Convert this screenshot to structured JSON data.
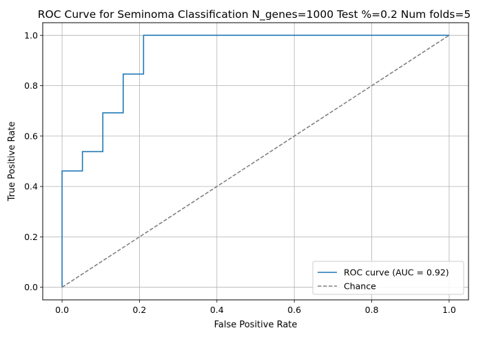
{
  "chart_data": {
    "type": "line",
    "title": "ROC Curve for Seminoma Classification N_genes=1000 Test %=0.2 Num folds=5",
    "xlabel": "False Positive Rate",
    "ylabel": "True Positive Rate",
    "xlim": [
      -0.05,
      1.05
    ],
    "ylim": [
      -0.05,
      1.05
    ],
    "xticks": [
      0.0,
      0.2,
      0.4,
      0.6,
      0.8,
      1.0
    ],
    "xtick_labels": [
      "0.0",
      "0.2",
      "0.4",
      "0.6",
      "0.8",
      "1.0"
    ],
    "yticks": [
      0.0,
      0.2,
      0.4,
      0.6,
      0.8,
      1.0
    ],
    "ytick_labels": [
      "0.0",
      "0.2",
      "0.4",
      "0.6",
      "0.8",
      "1.0"
    ],
    "grid": true,
    "legend_position": "lower-right",
    "series": [
      {
        "name": "ROC curve (AUC = 0.92)",
        "color": "#1f77b4",
        "style": "solid",
        "x": [
          0.0,
          0.0,
          0.0526,
          0.0526,
          0.1053,
          0.1053,
          0.1579,
          0.1579,
          0.2105,
          0.2105,
          1.0
        ],
        "y": [
          0.0,
          0.4615,
          0.4615,
          0.5385,
          0.5385,
          0.6923,
          0.6923,
          0.8462,
          0.8462,
          1.0,
          1.0
        ]
      },
      {
        "name": "Chance",
        "color": "#808080",
        "style": "dashed",
        "x": [
          0.0,
          1.0
        ],
        "y": [
          0.0,
          1.0
        ]
      }
    ]
  }
}
